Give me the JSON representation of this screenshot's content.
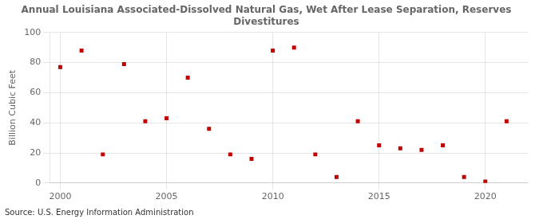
{
  "chart_data": {
    "type": "scatter",
    "title": "Annual Louisiana Associated-Dissolved Natural Gas, Wet After Lease Separation, Reserves\nDivestitures",
    "ylabel": "Billion Cubic Feet",
    "annotation": "Source: U.S. Energy Information Administration",
    "x": [
      2000,
      2001,
      2002,
      2003,
      2004,
      2005,
      2006,
      2007,
      2008,
      2009,
      2010,
      2011,
      2012,
      2013,
      2014,
      2015,
      2016,
      2017,
      2018,
      2019,
      2020,
      2021
    ],
    "values": [
      77,
      88,
      19,
      79,
      41,
      43,
      70,
      36,
      19,
      16,
      88,
      90,
      19,
      4,
      41,
      25,
      23,
      22,
      25,
      4,
      1,
      41
    ],
    "color": "#C00000",
    "marker": "square",
    "xlim": [
      1999.5,
      2022
    ],
    "xticks": [
      2000,
      2005,
      2010,
      2015,
      2020
    ],
    "ylim": [
      0,
      100
    ],
    "yticks": [
      0,
      20,
      40,
      60,
      80,
      100
    ],
    "grid": true
  }
}
